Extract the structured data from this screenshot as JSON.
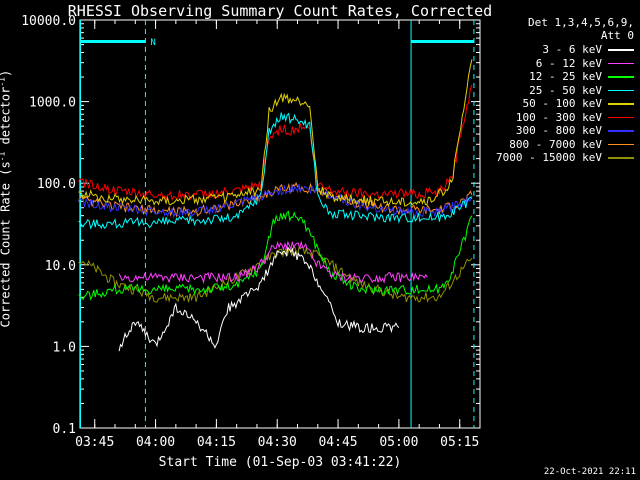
{
  "chart_data": {
    "type": "line",
    "title": "RHESSI Observing Summary Count Rates, Corrected",
    "xlabel": "Start Time (01-Sep-03 03:41:22)",
    "ylabel": "Corrected Count Rate (s",
    "ylabel_sup": "-1",
    "ylabel_suffix": " detector",
    "ylabel_sup2": "-1",
    "ylabel_end": ")",
    "yscale": "log",
    "ylim": [
      0.1,
      10000
    ],
    "xlim": [
      "03:41:22",
      "05:20:00"
    ],
    "xticks": [
      "03:45",
      "04:00",
      "04:15",
      "04:30",
      "04:45",
      "05:00",
      "05:15"
    ],
    "yticks": [
      "0.1",
      "1.0",
      "10.0",
      "100.0",
      "1000.0",
      "10000.0"
    ],
    "detectors": "Det 1,3,4,5,6,9,",
    "attenuator": "Att 0",
    "night_marker": "N",
    "series": [
      {
        "name": "3 - 6 keV",
        "color": "#ffffff",
        "points": [
          [
            "03:51",
            1.0
          ],
          [
            "03:55",
            2
          ],
          [
            "04:00",
            1.0
          ],
          [
            "04:05",
            3
          ],
          [
            "04:10",
            2
          ],
          [
            "04:15",
            1.0
          ],
          [
            "04:18",
            3
          ],
          [
            "04:22",
            4
          ],
          [
            "04:26",
            6
          ],
          [
            "04:28",
            9
          ],
          [
            "04:30",
            13
          ],
          [
            "04:33",
            15
          ],
          [
            "04:36",
            12
          ],
          [
            "04:39",
            8
          ],
          [
            "04:42",
            4
          ],
          [
            "04:45",
            2
          ],
          [
            "04:50",
            1.7
          ],
          [
            "05:00",
            1.7
          ]
        ]
      },
      {
        "name": "6 - 12 keV",
        "color": "#ff40ff",
        "points": [
          [
            "03:51",
            7
          ],
          [
            "04:00",
            7
          ],
          [
            "04:10",
            7
          ],
          [
            "04:20",
            7
          ],
          [
            "04:25",
            9
          ],
          [
            "04:29",
            16
          ],
          [
            "04:33",
            18
          ],
          [
            "04:37",
            16
          ],
          [
            "04:40",
            10
          ],
          [
            "04:45",
            7
          ],
          [
            "05:00",
            7
          ],
          [
            "05:07",
            7
          ]
        ]
      },
      {
        "name": "12 - 25 keV",
        "color": "#00ff00",
        "points": [
          [
            "03:41",
            4
          ],
          [
            "03:50",
            5
          ],
          [
            "04:00",
            5
          ],
          [
            "04:10",
            5
          ],
          [
            "04:20",
            5.5
          ],
          [
            "04:26",
            9
          ],
          [
            "04:29",
            35
          ],
          [
            "04:32",
            40
          ],
          [
            "04:36",
            38
          ],
          [
            "04:39",
            20
          ],
          [
            "04:43",
            8
          ],
          [
            "04:50",
            5
          ],
          [
            "05:00",
            5
          ],
          [
            "05:10",
            5
          ],
          [
            "05:13",
            8
          ],
          [
            "05:16",
            20
          ],
          [
            "05:18",
            40
          ]
        ]
      },
      {
        "name": "25 - 50 keV",
        "color": "#00ffff",
        "points": [
          [
            "03:41",
            32
          ],
          [
            "03:50",
            32
          ],
          [
            "04:00",
            33
          ],
          [
            "04:10",
            35
          ],
          [
            "04:20",
            38
          ],
          [
            "04:26",
            70
          ],
          [
            "04:28",
            450
          ],
          [
            "04:31",
            650
          ],
          [
            "04:35",
            600
          ],
          [
            "04:38",
            520
          ],
          [
            "04:40",
            70
          ],
          [
            "04:43",
            42
          ],
          [
            "04:50",
            40
          ],
          [
            "05:00",
            38
          ],
          [
            "05:10",
            38
          ],
          [
            "05:15",
            50
          ],
          [
            "05:18",
            65
          ]
        ]
      },
      {
        "name": "50 - 100 keV",
        "color": "#e0d000",
        "points": [
          [
            "03:41",
            75
          ],
          [
            "03:50",
            65
          ],
          [
            "04:00",
            62
          ],
          [
            "04:10",
            63
          ],
          [
            "04:20",
            70
          ],
          [
            "04:26",
            85
          ],
          [
            "04:28",
            800
          ],
          [
            "04:31",
            1100
          ],
          [
            "04:35",
            1000
          ],
          [
            "04:38",
            950
          ],
          [
            "04:40",
            85
          ],
          [
            "04:43",
            70
          ],
          [
            "04:50",
            62
          ],
          [
            "05:00",
            60
          ],
          [
            "05:08",
            60
          ],
          [
            "05:13",
            100
          ],
          [
            "05:16",
            800
          ],
          [
            "05:18",
            3300
          ]
        ]
      },
      {
        "name": "100 - 300 keV",
        "color": "#ff0000",
        "points": [
          [
            "03:41",
            105
          ],
          [
            "03:45",
            95
          ],
          [
            "03:50",
            80
          ],
          [
            "04:00",
            72
          ],
          [
            "04:10",
            72
          ],
          [
            "04:20",
            78
          ],
          [
            "04:26",
            95
          ],
          [
            "04:28",
            350
          ],
          [
            "04:31",
            480
          ],
          [
            "04:33",
            420
          ],
          [
            "04:36",
            500
          ],
          [
            "04:38",
            450
          ],
          [
            "04:40",
            95
          ],
          [
            "04:45",
            80
          ],
          [
            "04:55",
            75
          ],
          [
            "05:05",
            75
          ],
          [
            "05:10",
            80
          ],
          [
            "05:13",
            110
          ],
          [
            "05:16",
            600
          ],
          [
            "05:18",
            1600
          ]
        ]
      },
      {
        "name": "300 - 800 keV",
        "color": "#3030ff",
        "points": [
          [
            "03:41",
            60
          ],
          [
            "03:50",
            50
          ],
          [
            "04:00",
            45
          ],
          [
            "04:10",
            44
          ],
          [
            "04:20",
            55
          ],
          [
            "04:30",
            80
          ],
          [
            "04:35",
            88
          ],
          [
            "04:40",
            80
          ],
          [
            "04:50",
            55
          ],
          [
            "05:00",
            45
          ],
          [
            "05:10",
            45
          ],
          [
            "05:15",
            55
          ],
          [
            "05:18",
            70
          ]
        ]
      },
      {
        "name": "800 - 7000 keV",
        "color": "#ff9020",
        "points": [
          [
            "03:41",
            62
          ],
          [
            "03:50",
            52
          ],
          [
            "04:00",
            46
          ],
          [
            "04:10",
            45
          ],
          [
            "04:20",
            56
          ],
          [
            "04:30",
            82
          ],
          [
            "04:35",
            90
          ],
          [
            "04:40",
            82
          ],
          [
            "04:50",
            57
          ],
          [
            "05:00",
            47
          ],
          [
            "05:10",
            47
          ],
          [
            "05:15",
            57
          ],
          [
            "05:18",
            72
          ]
        ]
      },
      {
        "name": "7000 - 15000 keV",
        "color": "#909000",
        "points": [
          [
            "03:41",
            12
          ],
          [
            "03:45",
            9
          ],
          [
            "03:50",
            6
          ],
          [
            "04:00",
            4
          ],
          [
            "04:10",
            4
          ],
          [
            "04:20",
            7
          ],
          [
            "04:30",
            14
          ],
          [
            "04:35",
            15
          ],
          [
            "04:40",
            13
          ],
          [
            "04:50",
            6
          ],
          [
            "05:00",
            4
          ],
          [
            "05:10",
            4
          ],
          [
            "05:15",
            8
          ],
          [
            "05:18",
            12
          ]
        ]
      }
    ],
    "vlines": [
      {
        "time": "03:41:30",
        "style": "solid",
        "color": "#00ffff"
      },
      {
        "time": "03:57:30",
        "style": "dashed",
        "color": "#00ffff"
      },
      {
        "time": "05:03:00",
        "style": "solid",
        "color": "#00ffff"
      },
      {
        "time": "05:18:30",
        "style": "dashed",
        "color": "#00ffff"
      }
    ],
    "night_bars": [
      {
        "start": "03:41:30",
        "end": "03:57:30"
      },
      {
        "start": "05:03:00",
        "end": "05:18:30"
      }
    ]
  },
  "timestamp": "22-Oct-2021 22:11"
}
